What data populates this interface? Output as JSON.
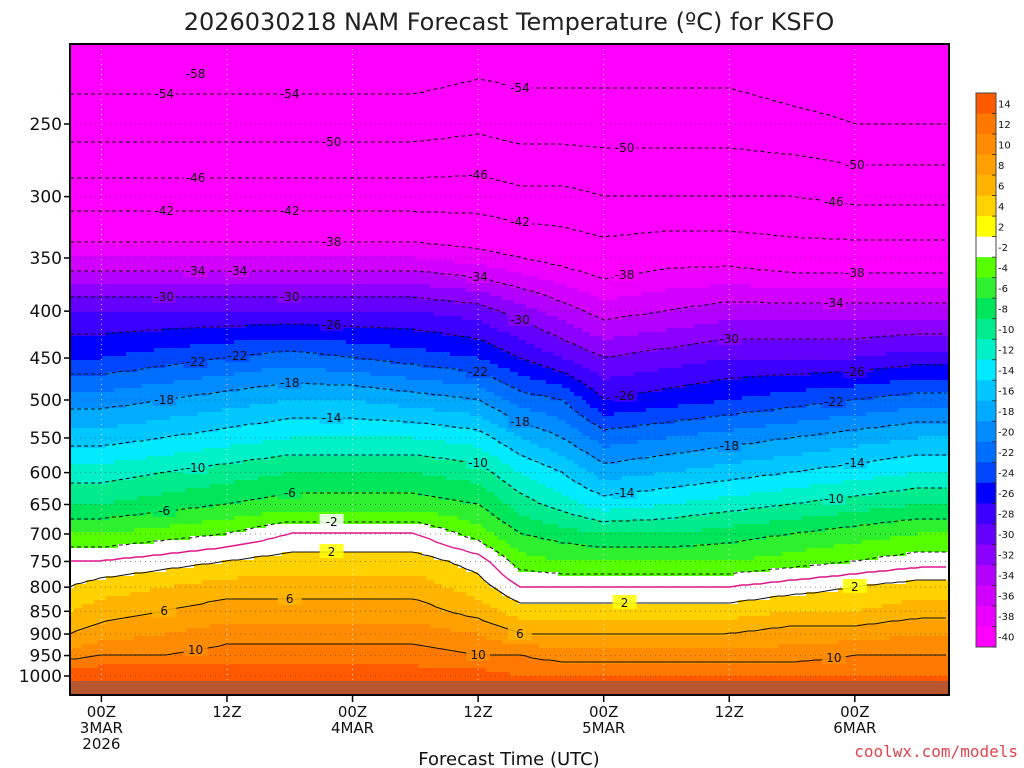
{
  "chart_data": {
    "type": "heatmap",
    "title": "2026030218 NAM Forecast Temperature (ºC) for KSFO",
    "xlabel": "Forecast Time (UTC)",
    "ylabel": "",
    "credit": "coolwx.com/models",
    "y_scale": "log (pressure, hPa)",
    "ylim": [
      1040,
      200
    ],
    "yticks": [
      250,
      300,
      350,
      400,
      450,
      500,
      550,
      600,
      650,
      700,
      750,
      800,
      850,
      900,
      950,
      1000
    ],
    "x_range_hours": [
      -3,
      81
    ],
    "xticks": [
      {
        "hour": 0,
        "lines": [
          "00Z",
          "3MAR",
          "2026"
        ]
      },
      {
        "hour": 12,
        "lines": [
          "12Z"
        ]
      },
      {
        "hour": 24,
        "lines": [
          "00Z",
          "4MAR"
        ]
      },
      {
        "hour": 36,
        "lines": [
          "12Z"
        ]
      },
      {
        "hour": 48,
        "lines": [
          "00Z",
          "5MAR"
        ]
      },
      {
        "hour": 60,
        "lines": [
          "12Z"
        ]
      },
      {
        "hour": 72,
        "lines": [
          "00Z",
          "6MAR"
        ]
      }
    ],
    "colorbar": {
      "labels": [
        "14",
        "12",
        "10",
        "8",
        "6",
        "4",
        "2",
        "-2",
        "-4",
        "-6",
        "-8",
        "-10",
        "-12",
        "-14",
        "-16",
        "-18",
        "-20",
        "-22",
        "-24",
        "-26",
        "-28",
        "-30",
        "-32",
        "-34",
        "-36",
        "-38",
        "-40"
      ],
      "colors": [
        "#ff5a00",
        "#ff7800",
        "#ff8c00",
        "#ffa000",
        "#ffb400",
        "#ffd200",
        "#ffff00",
        "#ffffff",
        "#55ff00",
        "#2ef02e",
        "#00e65a",
        "#00eb8c",
        "#00f0c8",
        "#00ebff",
        "#00c8ff",
        "#00aaff",
        "#008cff",
        "#006eff",
        "#0046ff",
        "#0000ff",
        "#3c00ff",
        "#6400ff",
        "#8c00ff",
        "#b400ff",
        "#d200ff",
        "#eb00ff",
        "#ff00ff"
      ]
    },
    "temperature_field": {
      "hours": [
        -3,
        0,
        6,
        12,
        18,
        24,
        30,
        36,
        40,
        44,
        48,
        54,
        60,
        66,
        72,
        78,
        81
      ],
      "levels_hpa": [
        1000,
        950,
        900,
        850,
        800,
        750,
        700,
        650,
        600,
        550,
        500,
        450,
        400,
        350,
        300,
        250,
        200
      ],
      "profiles": [
        [
          14,
          9,
          6,
          4,
          2,
          0,
          -4,
          -8,
          -11,
          -15,
          -19,
          -24,
          -28,
          -36,
          -44,
          -52,
          -58
        ],
        [
          14,
          10,
          7,
          5,
          3,
          0,
          -4,
          -8,
          -11,
          -15,
          -19,
          -24,
          -28,
          -36,
          -44,
          -52,
          -58
        ],
        [
          14,
          10,
          8,
          6,
          4,
          1,
          -3,
          -7,
          -10,
          -14,
          -18,
          -23,
          -28,
          -36,
          -44,
          -52,
          -58
        ],
        [
          14,
          11,
          9,
          7,
          5,
          2,
          -2,
          -6,
          -9,
          -13,
          -17,
          -22,
          -28,
          -36,
          -44,
          -52,
          -58
        ],
        [
          14,
          11,
          9,
          7,
          5,
          3,
          0,
          -5,
          -8,
          -12,
          -16,
          -21,
          -28,
          -36,
          -44,
          -52,
          -58
        ],
        [
          13,
          11,
          9,
          7,
          5,
          3,
          0,
          -5,
          -8,
          -12,
          -16,
          -22,
          -28,
          -36,
          -44,
          -52,
          -58
        ],
        [
          13,
          11,
          9,
          7,
          5,
          3,
          0,
          -5,
          -8,
          -12,
          -17,
          -23,
          -28,
          -36,
          -44,
          -52,
          -58
        ],
        [
          13,
          10,
          8,
          5,
          3,
          1,
          -3,
          -6,
          -9,
          -13,
          -18,
          -24,
          -29,
          -37,
          -44,
          -51,
          -57
        ],
        [
          12,
          10,
          6,
          3,
          0,
          -3,
          -6,
          -9,
          -12,
          -16,
          -21,
          -26,
          -31,
          -38,
          -45,
          -52,
          -57
        ],
        [
          12,
          9,
          6,
          3,
          0,
          -4,
          -7,
          -11,
          -14,
          -18,
          -22,
          -28,
          -33,
          -39,
          -45,
          -52,
          -57
        ],
        [
          12,
          9,
          6,
          3,
          0,
          -4,
          -8,
          -13,
          -17,
          -21,
          -26,
          -30,
          -35,
          -40,
          -46,
          -52,
          -57
        ],
        [
          12,
          9,
          6,
          3,
          0,
          -4,
          -8,
          -12,
          -16,
          -20,
          -25,
          -29,
          -34,
          -39,
          -46,
          -52,
          -57
        ],
        [
          12,
          9,
          6,
          3,
          0,
          -4,
          -7,
          -11,
          -15,
          -19,
          -24,
          -28,
          -33,
          -39,
          -46,
          -52,
          -57
        ],
        [
          12,
          9,
          7,
          4,
          1,
          -3,
          -6,
          -10,
          -14,
          -18,
          -23,
          -28,
          -33,
          -40,
          -46,
          -53,
          -58
        ],
        [
          12,
          10,
          7,
          4,
          2,
          -2,
          -5,
          -9,
          -13,
          -17,
          -22,
          -28,
          -33,
          -40,
          -47,
          -54,
          -58
        ],
        [
          12,
          10,
          8,
          5,
          3,
          -1,
          -4,
          -8,
          -12,
          -16,
          -21,
          -27,
          -33,
          -40,
          -47,
          -54,
          -58
        ],
        [
          12,
          10,
          8,
          5,
          3,
          -1,
          -4,
          -8,
          -12,
          -16,
          -21,
          -27,
          -33,
          -40,
          -47,
          -54,
          -58
        ]
      ]
    },
    "contour_labels": [
      "-58",
      "-54",
      "-54",
      "-54",
      "-50",
      "-50",
      "-50",
      "-46",
      "-46",
      "-46",
      "-42",
      "-42",
      "-42",
      "-38",
      "-38",
      "-38",
      "-34",
      "-34",
      "-34",
      "-34",
      "-30",
      "-30",
      "-30",
      "-30",
      "-26",
      "-26",
      "-26",
      "-22",
      "-22",
      "-22",
      "-22",
      "-18",
      "-18",
      "-18",
      "-18",
      "-14",
      "-14",
      "-14",
      "-10",
      "-10",
      "-10",
      "-6",
      "-6",
      "-2",
      "2",
      "2",
      "2",
      "6",
      "6",
      "6",
      "10",
      "10",
      "10"
    ],
    "ground_color": "#b8572d",
    "freezing_line_color": "#e0158a"
  }
}
